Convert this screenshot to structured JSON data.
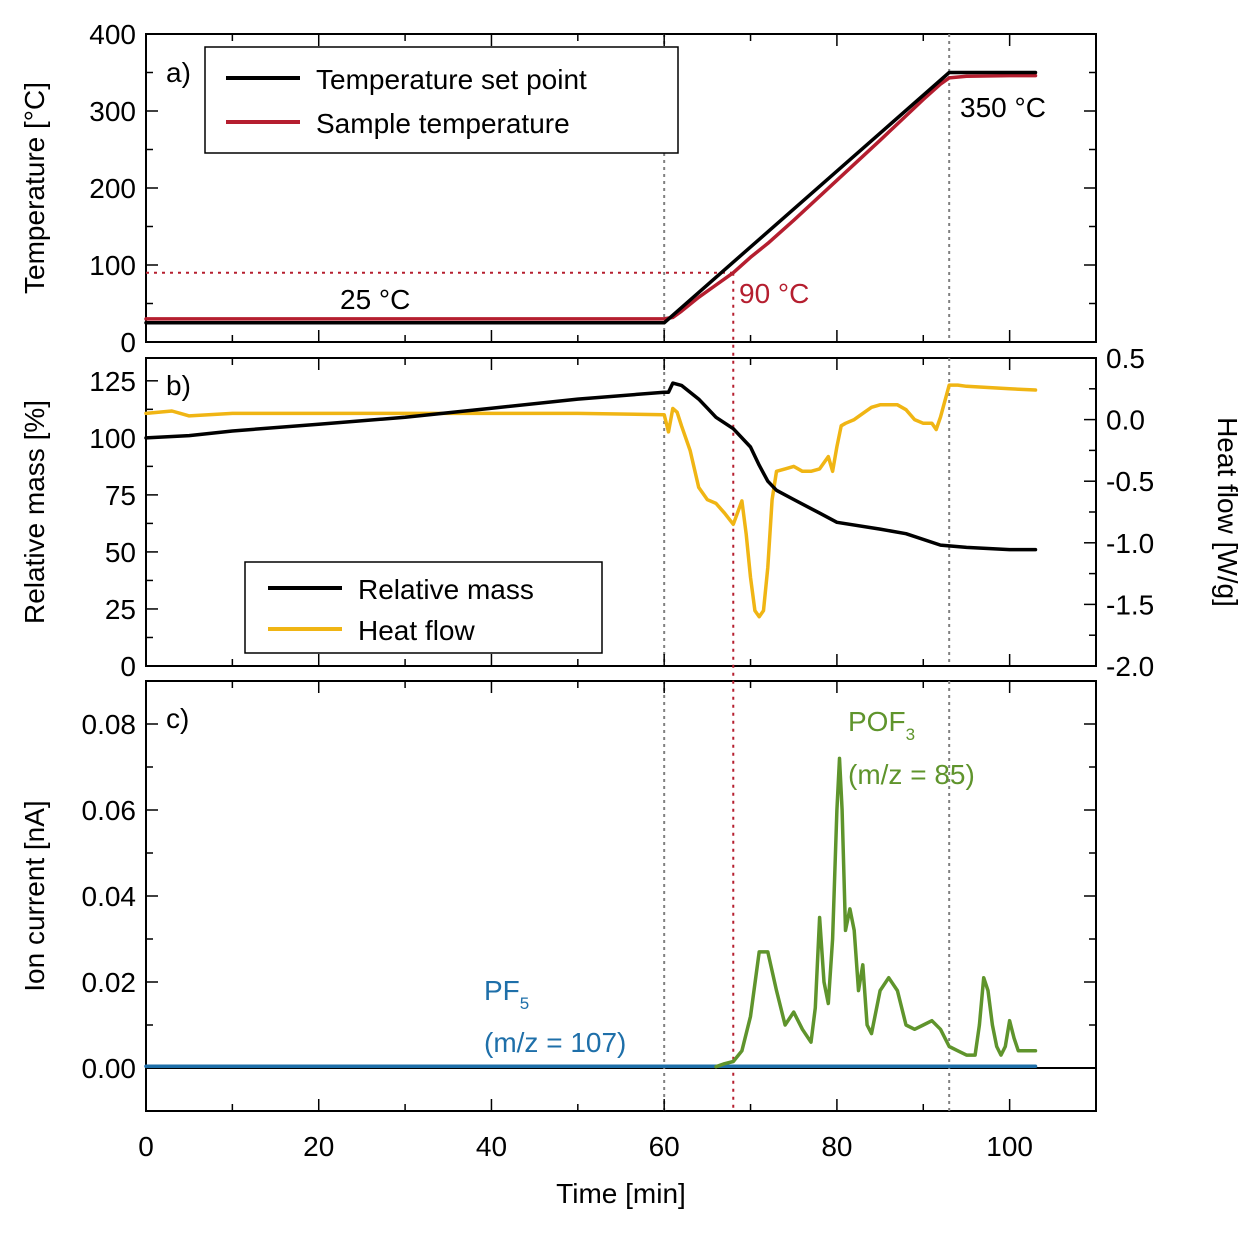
{
  "figure": {
    "xlabel": "Time [min]",
    "x_ticks": [
      "0",
      "20",
      "40",
      "60",
      "80",
      "100"
    ]
  },
  "colors": {
    "setpoint": "#000000",
    "sample": "#b51e2f",
    "mass": "#000000",
    "heat": "#f0b514",
    "pof3": "#5f942c",
    "pf5": "#1e6fa9",
    "guide": "#808080"
  },
  "chart_data": [
    {
      "type": "line",
      "panel_label": "a)",
      "ylabel": "Temperature [°C]",
      "xlim": [
        0,
        110
      ],
      "ylim": [
        0,
        400
      ],
      "y_ticks": [
        "0",
        "100",
        "200",
        "300",
        "400"
      ],
      "legend": {
        "placement": "top-left",
        "entries": [
          "Temperature set point",
          "Sample temperature"
        ]
      },
      "annotations": {
        "start_temp": "25 °C",
        "onset_temp": "90 °C",
        "end_temp": "350 °C"
      },
      "series": [
        {
          "name": "Temperature set point",
          "color": "#000000",
          "x": [
            0,
            60,
            93,
            103
          ],
          "y": [
            25,
            25,
            350,
            350
          ]
        },
        {
          "name": "Sample temperature",
          "color": "#b51e2f",
          "x": [
            0,
            5,
            20,
            40,
            55,
            60,
            61,
            62,
            64,
            66,
            68,
            70,
            72,
            75,
            80,
            85,
            90,
            92,
            93,
            95,
            100,
            103
          ],
          "y": [
            30,
            30,
            30,
            30,
            30,
            30,
            32,
            40,
            58,
            74,
            90,
            110,
            128,
            158,
            210,
            262,
            315,
            335,
            343,
            345,
            346,
            346
          ]
        }
      ],
      "guides": {
        "vertical_dotted_x": [
          60,
          93
        ],
        "onset_x": 68,
        "onset_y": 90
      }
    },
    {
      "type": "line",
      "panel_label": "b)",
      "ylabel": "Relative mass [%]",
      "y2label": "Heat flow [W/g]",
      "xlim": [
        0,
        110
      ],
      "ylim": [
        0,
        135
      ],
      "y2lim": [
        -2.0,
        0.5
      ],
      "y_ticks": [
        "0",
        "25",
        "50",
        "75",
        "100",
        "125"
      ],
      "y2_ticks": [
        "-2.0",
        "-1.5",
        "-1.0",
        "-0.5",
        "0.0",
        "0.5"
      ],
      "legend": {
        "placement": "bottom-left",
        "entries": [
          "Relative mass",
          "Heat flow"
        ]
      },
      "series": [
        {
          "name": "Relative mass",
          "axis": "left",
          "color": "#000000",
          "x": [
            0,
            5,
            10,
            20,
            30,
            40,
            50,
            60,
            60.5,
            61,
            62,
            63,
            64,
            65,
            66,
            68,
            70,
            71,
            72,
            73,
            75,
            78,
            80,
            85,
            88,
            92,
            95,
            100,
            103
          ],
          "y": [
            100,
            101,
            103,
            106,
            109,
            113,
            117,
            120,
            120,
            124,
            123,
            120,
            117,
            113,
            109,
            104,
            96,
            88,
            81,
            77,
            73,
            67,
            63,
            60,
            58,
            53,
            52,
            51,
            51
          ]
        },
        {
          "name": "Heat flow",
          "axis": "right",
          "color": "#f0b514",
          "x": [
            0,
            3,
            4,
            5,
            10,
            20,
            30,
            40,
            50,
            60,
            60.5,
            61,
            61.5,
            62,
            63,
            64,
            65,
            66,
            67,
            68,
            69,
            69.5,
            70,
            70.5,
            71,
            71.5,
            72,
            72.5,
            73,
            74,
            75,
            76,
            77,
            78,
            79,
            79.5,
            80,
            80.5,
            81,
            82,
            83,
            84,
            85,
            87,
            88,
            89,
            90,
            91,
            91.5,
            92,
            93,
            94,
            95,
            100,
            103
          ],
          "y": [
            0.05,
            0.07,
            0.05,
            0.03,
            0.05,
            0.05,
            0.05,
            0.05,
            0.05,
            0.04,
            -0.1,
            0.09,
            0.06,
            -0.05,
            -0.25,
            -0.55,
            -0.65,
            -0.68,
            -0.76,
            -0.85,
            -0.66,
            -0.93,
            -1.28,
            -1.55,
            -1.6,
            -1.55,
            -1.2,
            -0.65,
            -0.42,
            -0.4,
            -0.38,
            -0.42,
            -0.42,
            -0.4,
            -0.3,
            -0.42,
            -0.22,
            -0.05,
            -0.03,
            0.0,
            0.05,
            0.1,
            0.12,
            0.12,
            0.08,
            0.0,
            -0.03,
            -0.03,
            -0.08,
            0.02,
            0.28,
            0.28,
            0.27,
            0.25,
            0.24
          ]
        }
      ],
      "guides": {
        "vertical_dotted_x": [
          60,
          93
        ],
        "onset_x": 68
      }
    },
    {
      "type": "line",
      "panel_label": "c)",
      "ylabel": "Ion current [nA]",
      "xlim": [
        0,
        110
      ],
      "ylim": [
        -0.01,
        0.09
      ],
      "y_ticks": [
        "0.00",
        "0.02",
        "0.04",
        "0.06",
        "0.08"
      ],
      "annotations": {
        "pof3_main": "POF",
        "pof3_sub": "3",
        "pof3_mz": "(m/z = 85)",
        "pf5_main": "PF",
        "pf5_sub": "5",
        "pf5_mz": "(m/z = 107)"
      },
      "series": [
        {
          "name": "POF3",
          "color": "#5f942c",
          "x": [
            66,
            67,
            68,
            69,
            70,
            71,
            72,
            73,
            74,
            75,
            76,
            77,
            77.5,
            78,
            78.5,
            79,
            79.5,
            80,
            80.3,
            80.6,
            81,
            81.5,
            82,
            82.5,
            83,
            83.5,
            84,
            85,
            86,
            87,
            88,
            89,
            90,
            91,
            92,
            93,
            94,
            95,
            96,
            96.5,
            97,
            97.5,
            98,
            98.5,
            99,
            99.5,
            100,
            100.5,
            101,
            102,
            103
          ],
          "y": [
            0.0003,
            0.001,
            0.0015,
            0.004,
            0.012,
            0.027,
            0.027,
            0.018,
            0.01,
            0.013,
            0.009,
            0.006,
            0.014,
            0.035,
            0.02,
            0.015,
            0.03,
            0.06,
            0.072,
            0.06,
            0.032,
            0.037,
            0.032,
            0.018,
            0.024,
            0.01,
            0.008,
            0.018,
            0.021,
            0.018,
            0.01,
            0.009,
            0.01,
            0.011,
            0.009,
            0.005,
            0.004,
            0.003,
            0.003,
            0.01,
            0.021,
            0.018,
            0.01,
            0.005,
            0.003,
            0.005,
            0.011,
            0.007,
            0.004,
            0.004,
            0.004
          ]
        },
        {
          "name": "PF5",
          "color": "#1e6fa9",
          "x": [
            0,
            20,
            40,
            60,
            80,
            100,
            103
          ],
          "y": [
            0.0004,
            0.0004,
            0.0004,
            0.0004,
            0.0004,
            0.0004,
            0.0004
          ]
        }
      ],
      "guides": {
        "vertical_dotted_x": [
          60,
          93
        ],
        "onset_x": 68
      }
    }
  ]
}
